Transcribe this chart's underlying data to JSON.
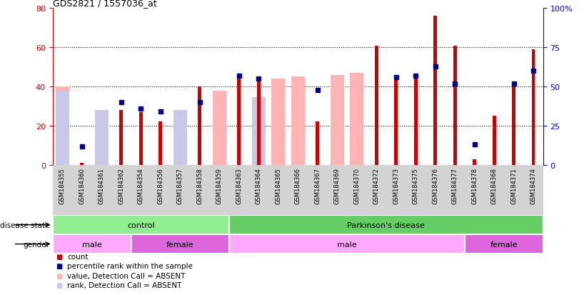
{
  "title": "GDS2821 / 1557036_at",
  "samples": [
    "GSM184355",
    "GSM184360",
    "GSM184361",
    "GSM184362",
    "GSM184354",
    "GSM184356",
    "GSM184357",
    "GSM184358",
    "GSM184359",
    "GSM184363",
    "GSM184364",
    "GSM184365",
    "GSM184366",
    "GSM184367",
    "GSM184369",
    "GSM184370",
    "GSM184372",
    "GSM184373",
    "GSM184375",
    "GSM184376",
    "GSM184377",
    "GSM184378",
    "GSM184368",
    "GSM184371",
    "GSM184374"
  ],
  "count_values": [
    0,
    1,
    0,
    28,
    27,
    22,
    0,
    40,
    0,
    45,
    43,
    0,
    0,
    22,
    0,
    0,
    61,
    45,
    46,
    76,
    61,
    3,
    25,
    40,
    59
  ],
  "percentile_values": [
    null,
    12,
    null,
    40,
    36,
    34,
    null,
    40,
    null,
    57,
    55,
    null,
    null,
    48,
    null,
    null,
    null,
    56,
    57,
    63,
    52,
    13,
    null,
    52,
    60
  ],
  "value_absent": [
    40,
    null,
    23,
    null,
    null,
    null,
    26,
    null,
    38,
    null,
    null,
    44,
    45,
    null,
    46,
    47,
    null,
    null,
    null,
    null,
    null,
    null,
    null,
    null,
    null
  ],
  "rank_absent": [
    47,
    null,
    35,
    null,
    null,
    null,
    35,
    null,
    null,
    null,
    43,
    null,
    null,
    null,
    null,
    null,
    null,
    null,
    null,
    null,
    null,
    null,
    null,
    null,
    null
  ],
  "disease_state_groups": [
    {
      "label": "control",
      "start": 0,
      "end": 9,
      "color": "#90ee90"
    },
    {
      "label": "Parkinson's disease",
      "start": 9,
      "end": 25,
      "color": "#66cc66"
    }
  ],
  "gender_groups": [
    {
      "label": "male",
      "start": 0,
      "end": 4,
      "color": "#ffaaff"
    },
    {
      "label": "female",
      "start": 4,
      "end": 9,
      "color": "#dd66dd"
    },
    {
      "label": "male",
      "start": 9,
      "end": 21,
      "color": "#ffaaff"
    },
    {
      "label": "female",
      "start": 21,
      "end": 25,
      "color": "#dd66dd"
    }
  ],
  "ylim_left": [
    0,
    80
  ],
  "ylim_right": [
    0,
    100
  ],
  "yticks_left": [
    0,
    20,
    40,
    60,
    80
  ],
  "yticks_right": [
    0,
    25,
    50,
    75,
    100
  ],
  "color_count": "#cc0000",
  "color_percentile": "#00008b",
  "color_value_absent": "#ffb3b3",
  "color_rank_absent": "#c8c8e8",
  "grid_dotted_at": [
    20,
    40,
    60
  ],
  "left_axis_color": "#cc0000",
  "right_axis_color": "#0000cc",
  "legend_items": [
    {
      "color": "#cc0000",
      "label": "count"
    },
    {
      "color": "#00008b",
      "label": "percentile rank within the sample"
    },
    {
      "color": "#ffb3b3",
      "label": "value, Detection Call = ABSENT"
    },
    {
      "color": "#c8c8e8",
      "label": "rank, Detection Call = ABSENT"
    }
  ]
}
